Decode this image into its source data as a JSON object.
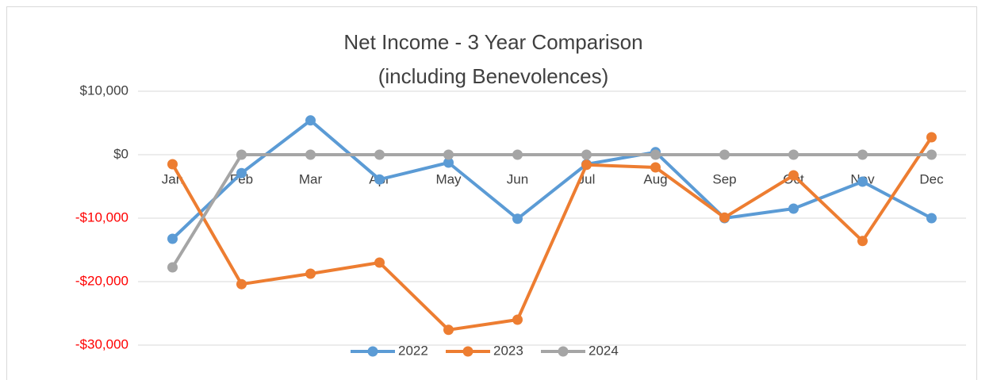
{
  "chart_data": {
    "type": "line",
    "title": [
      "Net Income - 3 Year Comparison",
      "(including Benevolences)"
    ],
    "categories": [
      "Jan",
      "Feb",
      "Mar",
      "Apr",
      "May",
      "Jun",
      "Jul",
      "Aug",
      "Sep",
      "Oct",
      "Nov",
      "Dec"
    ],
    "series": [
      {
        "name": "2022",
        "color": "#5b9bd5",
        "values": [
          -13250,
          -2900,
          5400,
          -3900,
          -1250,
          -10100,
          -1500,
          400,
          -10000,
          -8500,
          -4250,
          -10000
        ]
      },
      {
        "name": "2023",
        "color": "#ed7d31",
        "values": [
          -1500,
          -20400,
          -18750,
          -17000,
          -27600,
          -26000,
          -1600,
          -2000,
          -9900,
          -3250,
          -13600,
          2750
        ]
      },
      {
        "name": "2024",
        "color": "#a5a5a5",
        "values": [
          -17750,
          0,
          0,
          0,
          0,
          0,
          0,
          0,
          0,
          0,
          0,
          0
        ]
      }
    ],
    "ylim": [
      -30000,
      10000
    ],
    "yticks": [
      {
        "value": -30000,
        "label": "-$30,000"
      },
      {
        "value": -20000,
        "label": "-$20,000"
      },
      {
        "value": -10000,
        "label": "-$10,000"
      },
      {
        "value": 0,
        "label": "$0"
      },
      {
        "value": 10000,
        "label": "$10,000"
      }
    ],
    "grid": true,
    "legend": "bottom",
    "tick_color": "#404040",
    "negative_tick_color": "#ff0000"
  }
}
